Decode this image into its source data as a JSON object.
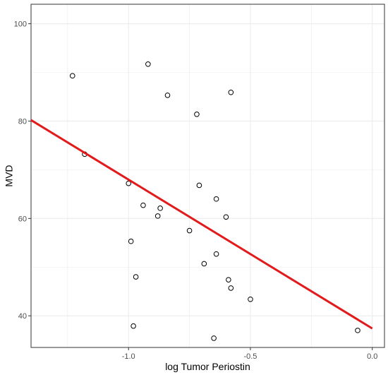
{
  "chart_data": {
    "type": "scatter",
    "xlabel": "log Tumor Periostin",
    "ylabel": "MVD",
    "xlim": [
      -1.4,
      0.05
    ],
    "ylim": [
      33.5,
      104
    ],
    "x_ticks": [
      -1.0,
      -0.5,
      0.0
    ],
    "x_tick_labels": [
      "-1.0",
      "-0.5",
      "0.0"
    ],
    "y_ticks": [
      40,
      60,
      80,
      100
    ],
    "y_tick_labels": [
      "40",
      "60",
      "80",
      "100"
    ],
    "grid": true,
    "points": [
      {
        "x": -1.23,
        "y": 89.3
      },
      {
        "x": -0.92,
        "y": 91.7
      },
      {
        "x": -0.84,
        "y": 85.3
      },
      {
        "x": -0.58,
        "y": 85.9
      },
      {
        "x": -0.72,
        "y": 81.4
      },
      {
        "x": -1.18,
        "y": 73.2
      },
      {
        "x": -1.0,
        "y": 67.2
      },
      {
        "x": -0.71,
        "y": 66.8
      },
      {
        "x": -0.64,
        "y": 64.0
      },
      {
        "x": -0.94,
        "y": 62.7
      },
      {
        "x": -0.87,
        "y": 62.1
      },
      {
        "x": -0.88,
        "y": 60.5
      },
      {
        "x": -0.6,
        "y": 60.3
      },
      {
        "x": -0.75,
        "y": 57.5
      },
      {
        "x": -0.99,
        "y": 55.3
      },
      {
        "x": -0.64,
        "y": 52.7
      },
      {
        "x": -0.69,
        "y": 50.7
      },
      {
        "x": -0.97,
        "y": 48.0
      },
      {
        "x": -0.59,
        "y": 47.4
      },
      {
        "x": -0.58,
        "y": 45.7
      },
      {
        "x": -0.5,
        "y": 43.4
      },
      {
        "x": -0.98,
        "y": 37.9
      },
      {
        "x": -0.65,
        "y": 35.4
      },
      {
        "x": -0.06,
        "y": 37.0
      }
    ],
    "fit_line": {
      "x": [
        -1.4,
        0.0
      ],
      "y": [
        80.2,
        37.4
      ]
    },
    "fit_color": "#e31a1c",
    "point_color": "#000000",
    "grid_color": "#ebebeb"
  }
}
